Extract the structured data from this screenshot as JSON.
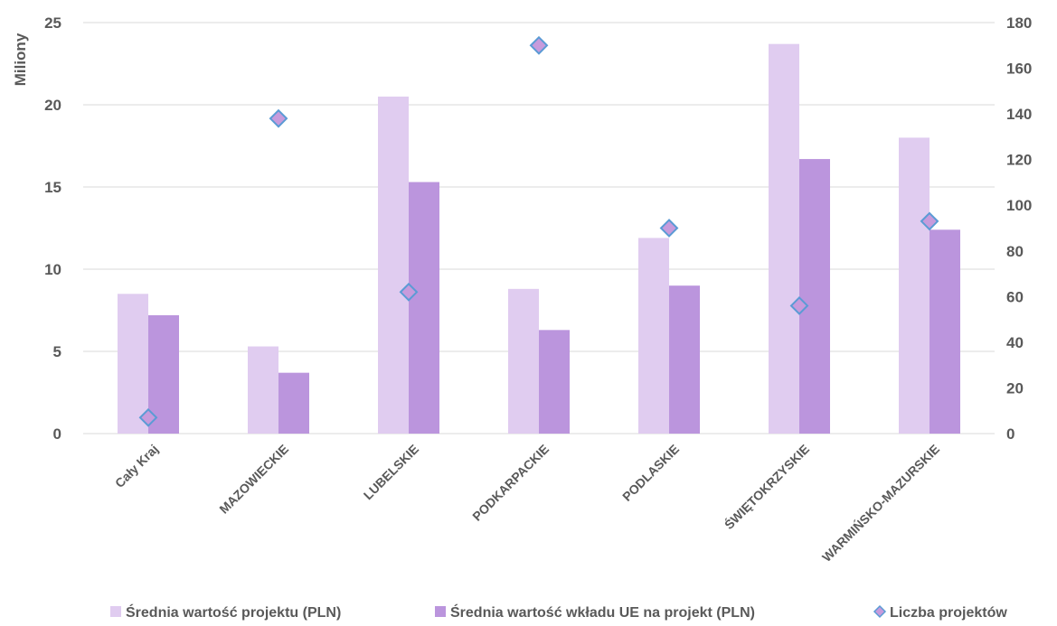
{
  "chart_data": {
    "type": "bar",
    "categories": [
      "Cały Kraj",
      "MAZOWIECKIE",
      "LUBELSKIE",
      "PODKARPACKIE",
      "PODLASKIE",
      "ŚWIĘTOKRZYSKIE",
      "WARMIŃSKO-MAZURSKIE"
    ],
    "series": [
      {
        "name": "Średnia wartość projektu (PLN)",
        "type": "bar",
        "axis": "left",
        "color": "#E0CCF0",
        "values": [
          8.5,
          5.3,
          20.5,
          8.8,
          11.9,
          23.7,
          18.0
        ]
      },
      {
        "name": "Średnia wartość wkładu UE na projekt (PLN)",
        "type": "bar",
        "axis": "left",
        "color": "#BB95DD",
        "values": [
          7.2,
          3.7,
          15.3,
          6.3,
          9.0,
          16.7,
          12.4
        ]
      },
      {
        "name": "Liczba projektów",
        "type": "scatter",
        "axis": "right",
        "color": "#C79BDC",
        "edge_color": "#5B9BD5",
        "marker": "diamond",
        "values": [
          7,
          138,
          62,
          170,
          90,
          56,
          93
        ]
      }
    ],
    "ylabel": "Miliony",
    "ylim": [
      0,
      25
    ],
    "yticks": [
      "0",
      "5",
      "10",
      "15",
      "20",
      "25"
    ],
    "y2lim": [
      0,
      180
    ],
    "y2ticks": [
      "0",
      "20",
      "40",
      "60",
      "80",
      "100",
      "120",
      "140",
      "160",
      "180"
    ],
    "grid": true,
    "legend_position": "bottom"
  }
}
